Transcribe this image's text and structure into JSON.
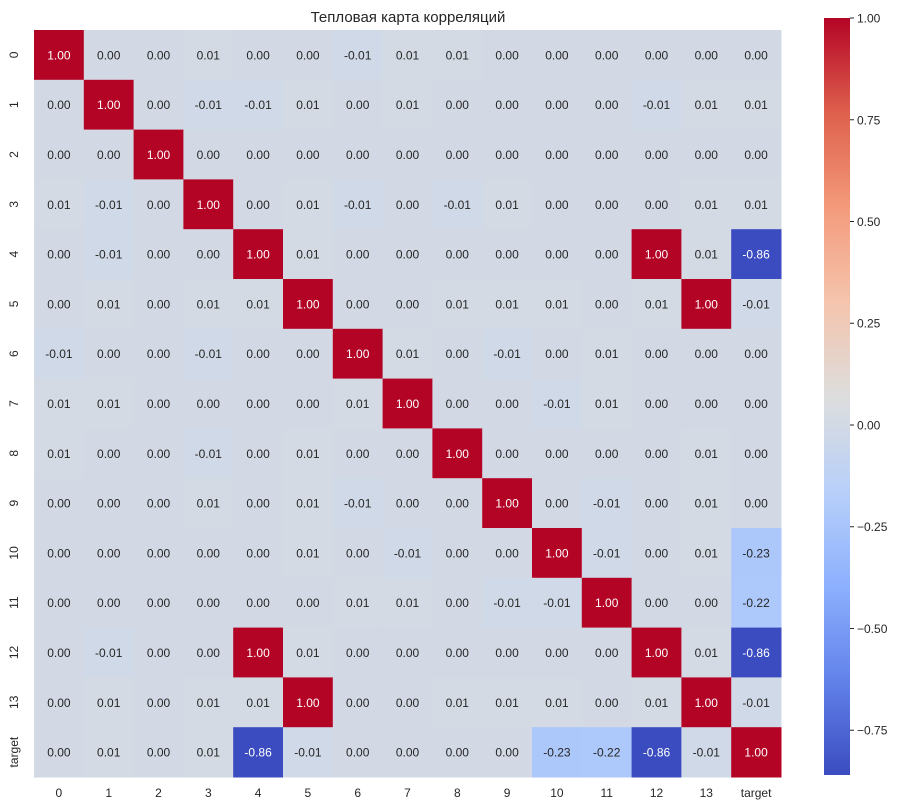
{
  "chart_data": {
    "type": "heatmap",
    "title": "Тепловая карта корреляций",
    "xlabel": "",
    "ylabel": "",
    "labels": [
      "0",
      "1",
      "2",
      "3",
      "4",
      "5",
      "6",
      "7",
      "8",
      "9",
      "10",
      "11",
      "12",
      "13",
      "target"
    ],
    "value_format": "2 decimals",
    "colormap": "coolwarm",
    "colorbar": {
      "min": -0.86,
      "max": 1.0,
      "ticks": [
        1.0,
        0.75,
        0.5,
        0.25,
        0.0,
        -0.25,
        -0.5,
        -0.75
      ],
      "tick_labels": [
        "1.00",
        "0.75",
        "0.50",
        "0.25",
        "0.00",
        "−0.25",
        "−0.50",
        "−0.75"
      ]
    },
    "values": [
      [
        1.0,
        -0.0,
        0.0,
        0.01,
        -0.0,
        -0.0,
        -0.01,
        0.01,
        0.01,
        0.0,
        0.0,
        0.0,
        -0.0,
        -0.0,
        0.0
      ],
      [
        -0.0,
        1.0,
        0.0,
        -0.01,
        -0.01,
        0.01,
        -0.0,
        0.01,
        -0.0,
        0.0,
        -0.0,
        -0.0,
        -0.01,
        0.01,
        0.01
      ],
      [
        0.0,
        0.0,
        1.0,
        0.0,
        0.0,
        0.0,
        0.0,
        -0.0,
        0.0,
        -0.0,
        -0.0,
        -0.0,
        0.0,
        0.0,
        0.0
      ],
      [
        0.01,
        -0.01,
        0.0,
        1.0,
        -0.0,
        0.01,
        -0.01,
        0.0,
        -0.01,
        0.01,
        0.0,
        0.0,
        -0.0,
        0.01,
        0.01
      ],
      [
        -0.0,
        -0.01,
        0.0,
        -0.0,
        1.0,
        0.01,
        -0.0,
        0.0,
        -0.0,
        0.0,
        -0.0,
        -0.0,
        1.0,
        0.01,
        -0.86
      ],
      [
        -0.0,
        0.01,
        0.0,
        0.01,
        0.01,
        1.0,
        0.0,
        0.0,
        0.01,
        0.01,
        0.01,
        -0.0,
        0.01,
        1.0,
        -0.01
      ],
      [
        -0.01,
        -0.0,
        0.0,
        -0.01,
        -0.0,
        0.0,
        1.0,
        0.01,
        -0.0,
        -0.01,
        0.0,
        0.01,
        -0.0,
        0.0,
        0.0
      ],
      [
        0.01,
        0.01,
        -0.0,
        0.0,
        0.0,
        0.0,
        0.01,
        1.0,
        0.0,
        0.0,
        -0.01,
        0.01,
        0.0,
        0.0,
        -0.0
      ],
      [
        0.01,
        -0.0,
        0.0,
        -0.01,
        -0.0,
        0.01,
        -0.0,
        0.0,
        1.0,
        -0.0,
        0.0,
        0.0,
        -0.0,
        0.01,
        0.0
      ],
      [
        0.0,
        0.0,
        -0.0,
        0.01,
        0.0,
        0.01,
        -0.01,
        0.0,
        -0.0,
        1.0,
        0.0,
        -0.01,
        0.0,
        0.01,
        0.0
      ],
      [
        0.0,
        -0.0,
        -0.0,
        0.0,
        -0.0,
        0.01,
        0.0,
        -0.01,
        0.0,
        0.0,
        1.0,
        -0.01,
        -0.0,
        0.01,
        -0.23
      ],
      [
        0.0,
        -0.0,
        -0.0,
        0.0,
        -0.0,
        -0.0,
        0.01,
        0.01,
        0.0,
        -0.01,
        -0.01,
        1.0,
        -0.0,
        -0.0,
        -0.22
      ],
      [
        -0.0,
        -0.01,
        0.0,
        -0.0,
        1.0,
        0.01,
        -0.0,
        0.0,
        -0.0,
        0.0,
        -0.0,
        -0.0,
        1.0,
        0.01,
        -0.86
      ],
      [
        -0.0,
        0.01,
        0.0,
        0.01,
        0.01,
        1.0,
        0.0,
        0.0,
        0.01,
        0.01,
        0.01,
        -0.0,
        0.01,
        1.0,
        -0.01
      ],
      [
        0.0,
        0.01,
        0.0,
        0.01,
        -0.86,
        -0.01,
        0.0,
        -0.0,
        0.0,
        0.0,
        -0.23,
        -0.22,
        -0.86,
        -0.01,
        1.0
      ]
    ]
  }
}
